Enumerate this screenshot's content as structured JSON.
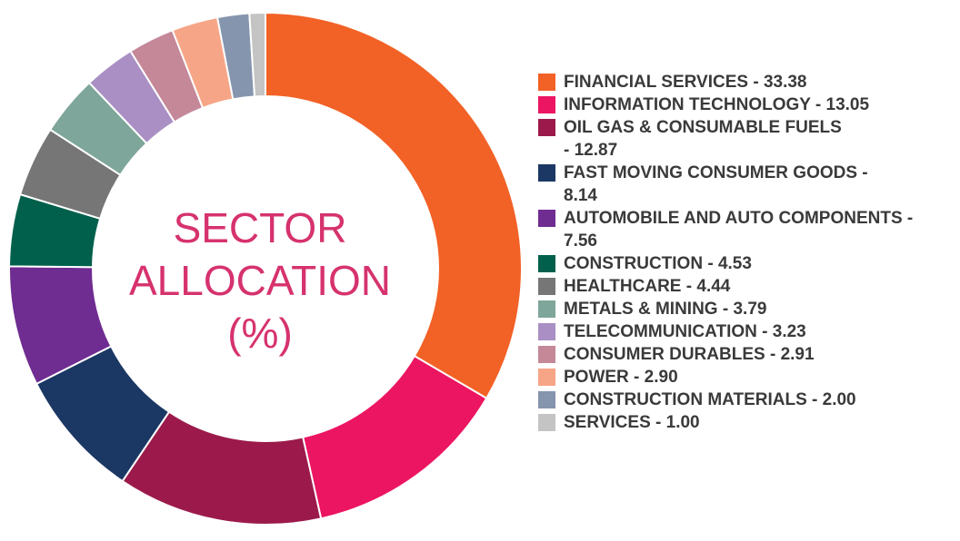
{
  "chart_data": {
    "type": "pie",
    "variant": "donut",
    "title_lines": [
      "SECTOR",
      "ALLOCATION",
      "(%)"
    ],
    "legend_position": "right",
    "series": [
      {
        "name": "FINANCIAL SERVICES",
        "value_label": "33.38",
        "value": 33.38,
        "color": "#f26126"
      },
      {
        "name": "INFORMATION TECHNOLOGY",
        "value_label": "13.05",
        "value": 13.05,
        "color": "#ec1561"
      },
      {
        "name": "OIL GAS & CONSUMABLE FUELS",
        "value_label": "12.87",
        "value": 12.87,
        "color": "#9b1a4b",
        "wrap": true
      },
      {
        "name": "FAST MOVING CONSUMER GOODS",
        "value_label": "8.14",
        "value": 8.14,
        "color": "#1b3763",
        "wrap": true
      },
      {
        "name": "AUTOMOBILE AND AUTO COMPONENTS",
        "value_label": "7.56",
        "value": 7.56,
        "color": "#6f2c91",
        "wrap": true
      },
      {
        "name": "CONSTRUCTION",
        "value_label": "4.53",
        "value": 4.53,
        "color": "#00604b"
      },
      {
        "name": "HEALTHCARE",
        "value_label": "4.44",
        "value": 4.44,
        "color": "#767676"
      },
      {
        "name": "METALS & MINING",
        "value_label": "3.79",
        "value": 3.79,
        "color": "#7ea69a"
      },
      {
        "name": "TELECOMMUNICATION",
        "value_label": "3.23",
        "value": 3.23,
        "color": "#a98fc3"
      },
      {
        "name": "CONSUMER DURABLES",
        "value_label": "2.91",
        "value": 2.91,
        "color": "#c48899"
      },
      {
        "name": "POWER",
        "value_label": "2.90",
        "value": 2.9,
        "color": "#f7a587"
      },
      {
        "name": "CONSTRUCTION MATERIALS",
        "value_label": "2.00",
        "value": 2.0,
        "color": "#8595ae"
      },
      {
        "name": "SERVICES",
        "value_label": "1.00",
        "value": 1.0,
        "color": "#c4c4c4"
      }
    ]
  }
}
